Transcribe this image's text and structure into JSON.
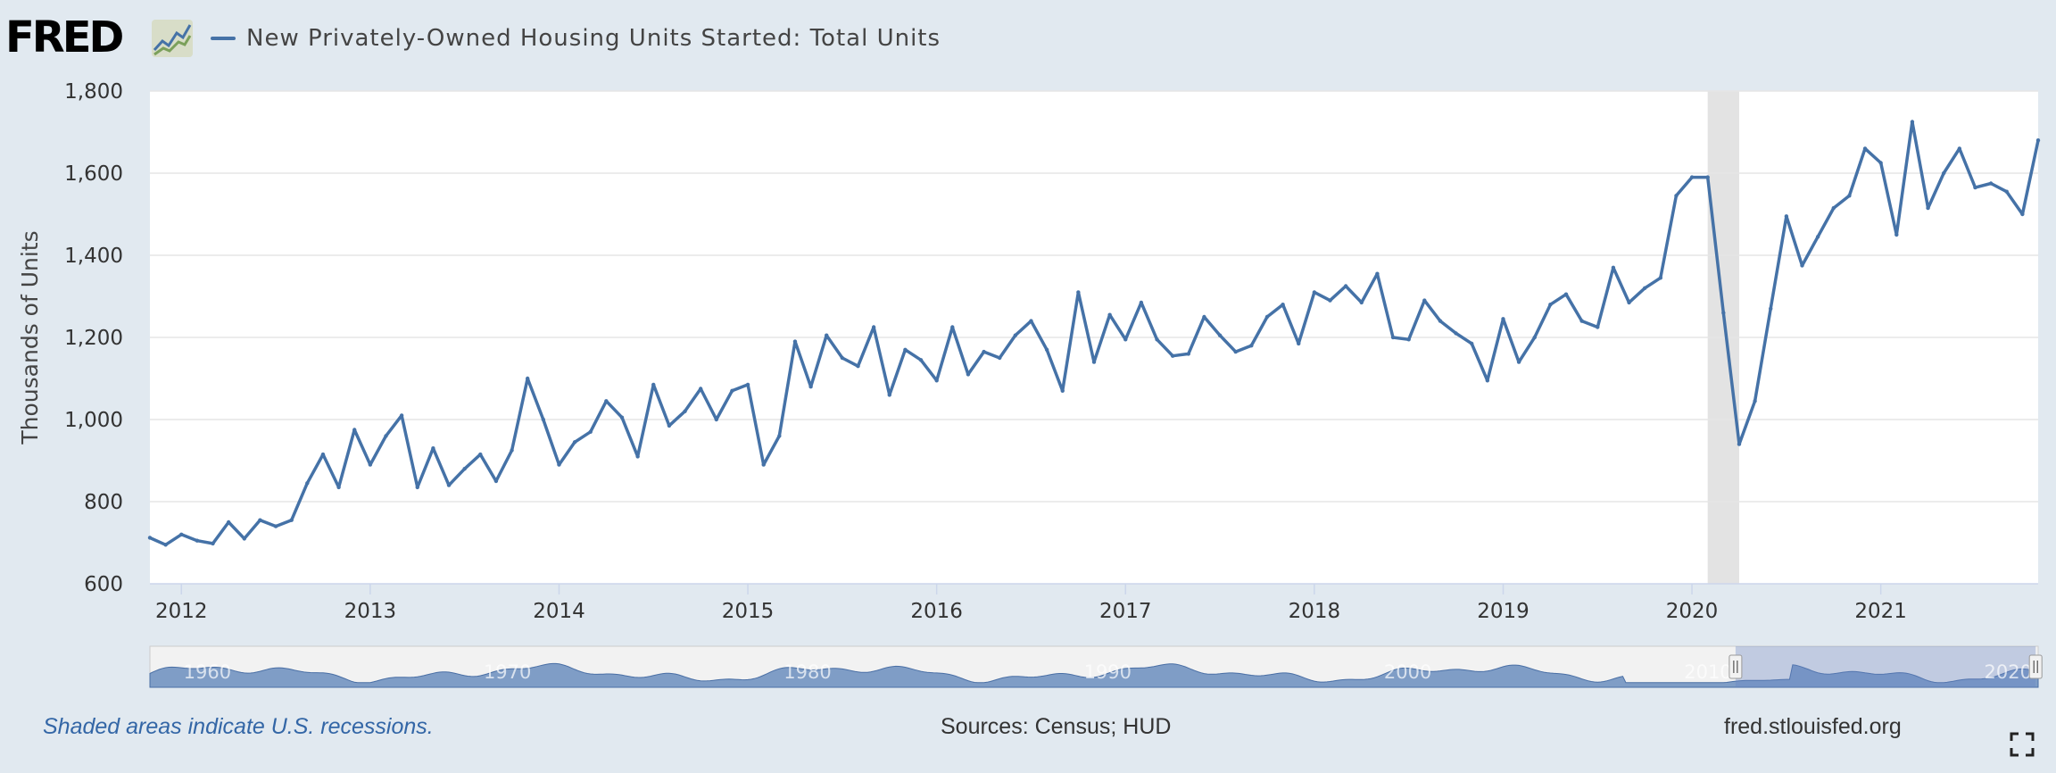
{
  "header": {
    "logo_text": "FRED",
    "series_title": "New Privately-Owned Housing Units Started: Total Units"
  },
  "footer": {
    "note": "Shaded areas indicate U.S. recessions.",
    "sources": "Sources: Census; HUD",
    "url": "fred.stlouisfed.org"
  },
  "colors": {
    "series": "#4572a7",
    "recession": "#e3e3e3",
    "background": "#e1e9f0",
    "plot_background": "#ffffff"
  },
  "icons": {
    "logo_graph": "line-graph-icon",
    "fullscreen": "fullscreen-icon"
  },
  "chart_data": {
    "type": "line",
    "title": "New Privately-Owned Housing Units Started: Total Units",
    "xlabel": "",
    "ylabel": "Thousands of Units",
    "ylim": [
      600,
      1800
    ],
    "yticks": [
      600,
      800,
      1000,
      1200,
      1400,
      1600,
      1800
    ],
    "ytick_labels": [
      "600",
      "800",
      "1,000",
      "1,200",
      "1,400",
      "1,600",
      "1,800"
    ],
    "xlim": [
      "2011-11",
      "2021-11"
    ],
    "xtick_labels": [
      "2012",
      "2013",
      "2014",
      "2015",
      "2016",
      "2017",
      "2018",
      "2019",
      "2020",
      "2021"
    ],
    "grid": true,
    "legend": "top-left",
    "recessions": [
      {
        "start": "2020-02",
        "end": "2020-04"
      }
    ],
    "series": [
      {
        "name": "New Privately-Owned Housing Units Started: Total Units",
        "start": "2011-11",
        "frequency": "monthly",
        "values": [
          712,
          695,
          720,
          705,
          698,
          750,
          710,
          755,
          740,
          755,
          845,
          915,
          835,
          975,
          890,
          960,
          1010,
          835,
          930,
          840,
          880,
          915,
          850,
          925,
          1100,
          1000,
          890,
          945,
          970,
          1045,
          1005,
          910,
          1085,
          985,
          1020,
          1075,
          1000,
          1070,
          1085,
          890,
          960,
          1190,
          1080,
          1205,
          1150,
          1130,
          1225,
          1060,
          1170,
          1145,
          1095,
          1225,
          1110,
          1165,
          1150,
          1205,
          1240,
          1170,
          1070,
          1310,
          1140,
          1255,
          1195,
          1285,
          1195,
          1155,
          1160,
          1250,
          1205,
          1165,
          1180,
          1250,
          1280,
          1185,
          1310,
          1290,
          1325,
          1285,
          1355,
          1200,
          1195,
          1290,
          1240,
          1210,
          1185,
          1095,
          1245,
          1140,
          1200,
          1280,
          1305,
          1240,
          1225,
          1370,
          1285,
          1320,
          1345,
          1545,
          1590,
          1590,
          1260,
          940,
          1045,
          1270,
          1495,
          1375,
          1445,
          1515,
          1545,
          1660,
          1625,
          1450,
          1725,
          1515,
          1600,
          1660,
          1565,
          1575,
          1555,
          1500,
          1680
        ]
      }
    ],
    "navigator": {
      "xtick_labels": [
        "1960",
        "1970",
        "1980",
        "1990",
        "2000",
        "2010",
        "2020"
      ],
      "range_start": "1959-01",
      "range_end": "2021-12",
      "selection_start": "2011-11",
      "selection_end": "2021-11"
    }
  }
}
